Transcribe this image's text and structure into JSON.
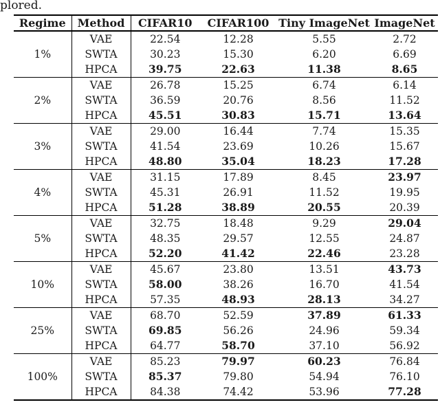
{
  "page": {
    "leading_text": "plored.",
    "background_color": "#ffffff",
    "text_color": "#1b1b1b",
    "line_color": "#000000"
  },
  "table": {
    "headers": [
      "Regime",
      "Method",
      "CIFAR10",
      "CIFAR100",
      "Tiny ImageNet",
      "ImageNet"
    ],
    "groups": [
      {
        "regime": "1%",
        "rows": [
          {
            "method": "VAE",
            "values": [
              "22.54",
              "12.28",
              "5.55",
              "2.72"
            ],
            "bold": [
              false,
              false,
              false,
              false
            ]
          },
          {
            "method": "SWTA",
            "values": [
              "30.23",
              "15.30",
              "6.20",
              "6.69"
            ],
            "bold": [
              false,
              false,
              false,
              false
            ]
          },
          {
            "method": "HPCA",
            "values": [
              "39.75",
              "22.63",
              "11.38",
              "8.65"
            ],
            "bold": [
              true,
              true,
              true,
              true
            ]
          }
        ]
      },
      {
        "regime": "2%",
        "rows": [
          {
            "method": "VAE",
            "values": [
              "26.78",
              "15.25",
              "6.74",
              "6.14"
            ],
            "bold": [
              false,
              false,
              false,
              false
            ]
          },
          {
            "method": "SWTA",
            "values": [
              "36.59",
              "20.76",
              "8.56",
              "11.52"
            ],
            "bold": [
              false,
              false,
              false,
              false
            ]
          },
          {
            "method": "HPCA",
            "values": [
              "45.51",
              "30.83",
              "15.71",
              "13.64"
            ],
            "bold": [
              true,
              true,
              true,
              true
            ]
          }
        ]
      },
      {
        "regime": "3%",
        "rows": [
          {
            "method": "VAE",
            "values": [
              "29.00",
              "16.44",
              "7.74",
              "15.35"
            ],
            "bold": [
              false,
              false,
              false,
              false
            ]
          },
          {
            "method": "SWTA",
            "values": [
              "41.54",
              "23.69",
              "10.26",
              "15.67"
            ],
            "bold": [
              false,
              false,
              false,
              false
            ]
          },
          {
            "method": "HPCA",
            "values": [
              "48.80",
              "35.04",
              "18.23",
              "17.28"
            ],
            "bold": [
              true,
              true,
              true,
              true
            ]
          }
        ]
      },
      {
        "regime": "4%",
        "rows": [
          {
            "method": "VAE",
            "values": [
              "31.15",
              "17.89",
              "8.45",
              "23.97"
            ],
            "bold": [
              false,
              false,
              false,
              true
            ]
          },
          {
            "method": "SWTA",
            "values": [
              "45.31",
              "26.91",
              "11.52",
              "19.95"
            ],
            "bold": [
              false,
              false,
              false,
              false
            ]
          },
          {
            "method": "HPCA",
            "values": [
              "51.28",
              "38.89",
              "20.55",
              "20.39"
            ],
            "bold": [
              true,
              true,
              true,
              false
            ]
          }
        ]
      },
      {
        "regime": "5%",
        "rows": [
          {
            "method": "VAE",
            "values": [
              "32.75",
              "18.48",
              "9.29",
              "29.04"
            ],
            "bold": [
              false,
              false,
              false,
              true
            ]
          },
          {
            "method": "SWTA",
            "values": [
              "48.35",
              "29.57",
              "12.55",
              "24.87"
            ],
            "bold": [
              false,
              false,
              false,
              false
            ]
          },
          {
            "method": "HPCA",
            "values": [
              "52.20",
              "41.42",
              "22.46",
              "23.28"
            ],
            "bold": [
              true,
              true,
              true,
              false
            ]
          }
        ]
      },
      {
        "regime": "10%",
        "rows": [
          {
            "method": "VAE",
            "values": [
              "45.67",
              "23.80",
              "13.51",
              "43.73"
            ],
            "bold": [
              false,
              false,
              false,
              true
            ]
          },
          {
            "method": "SWTA",
            "values": [
              "58.00",
              "38.26",
              "16.70",
              "41.54"
            ],
            "bold": [
              true,
              false,
              false,
              false
            ]
          },
          {
            "method": "HPCA",
            "values": [
              "57.35",
              "48.93",
              "28.13",
              "34.27"
            ],
            "bold": [
              false,
              true,
              true,
              false
            ]
          }
        ]
      },
      {
        "regime": "25%",
        "rows": [
          {
            "method": "VAE",
            "values": [
              "68.70",
              "52.59",
              "37.89",
              "61.33"
            ],
            "bold": [
              false,
              false,
              true,
              true
            ]
          },
          {
            "method": "SWTA",
            "values": [
              "69.85",
              "56.26",
              "24.96",
              "59.34"
            ],
            "bold": [
              true,
              false,
              false,
              false
            ]
          },
          {
            "method": "HPCA",
            "values": [
              "64.77",
              "58.70",
              "37.10",
              "56.92"
            ],
            "bold": [
              false,
              true,
              false,
              false
            ]
          }
        ]
      },
      {
        "regime": "100%",
        "rows": [
          {
            "method": "VAE",
            "values": [
              "85.23",
              "79.97",
              "60.23",
              "76.84"
            ],
            "bold": [
              false,
              true,
              true,
              false
            ]
          },
          {
            "method": "SWTA",
            "values": [
              "85.37",
              "79.80",
              "54.94",
              "76.10"
            ],
            "bold": [
              true,
              false,
              false,
              false
            ]
          },
          {
            "method": "HPCA",
            "values": [
              "84.38",
              "74.42",
              "53.96",
              "77.28"
            ],
            "bold": [
              false,
              false,
              false,
              true
            ]
          }
        ]
      }
    ]
  }
}
